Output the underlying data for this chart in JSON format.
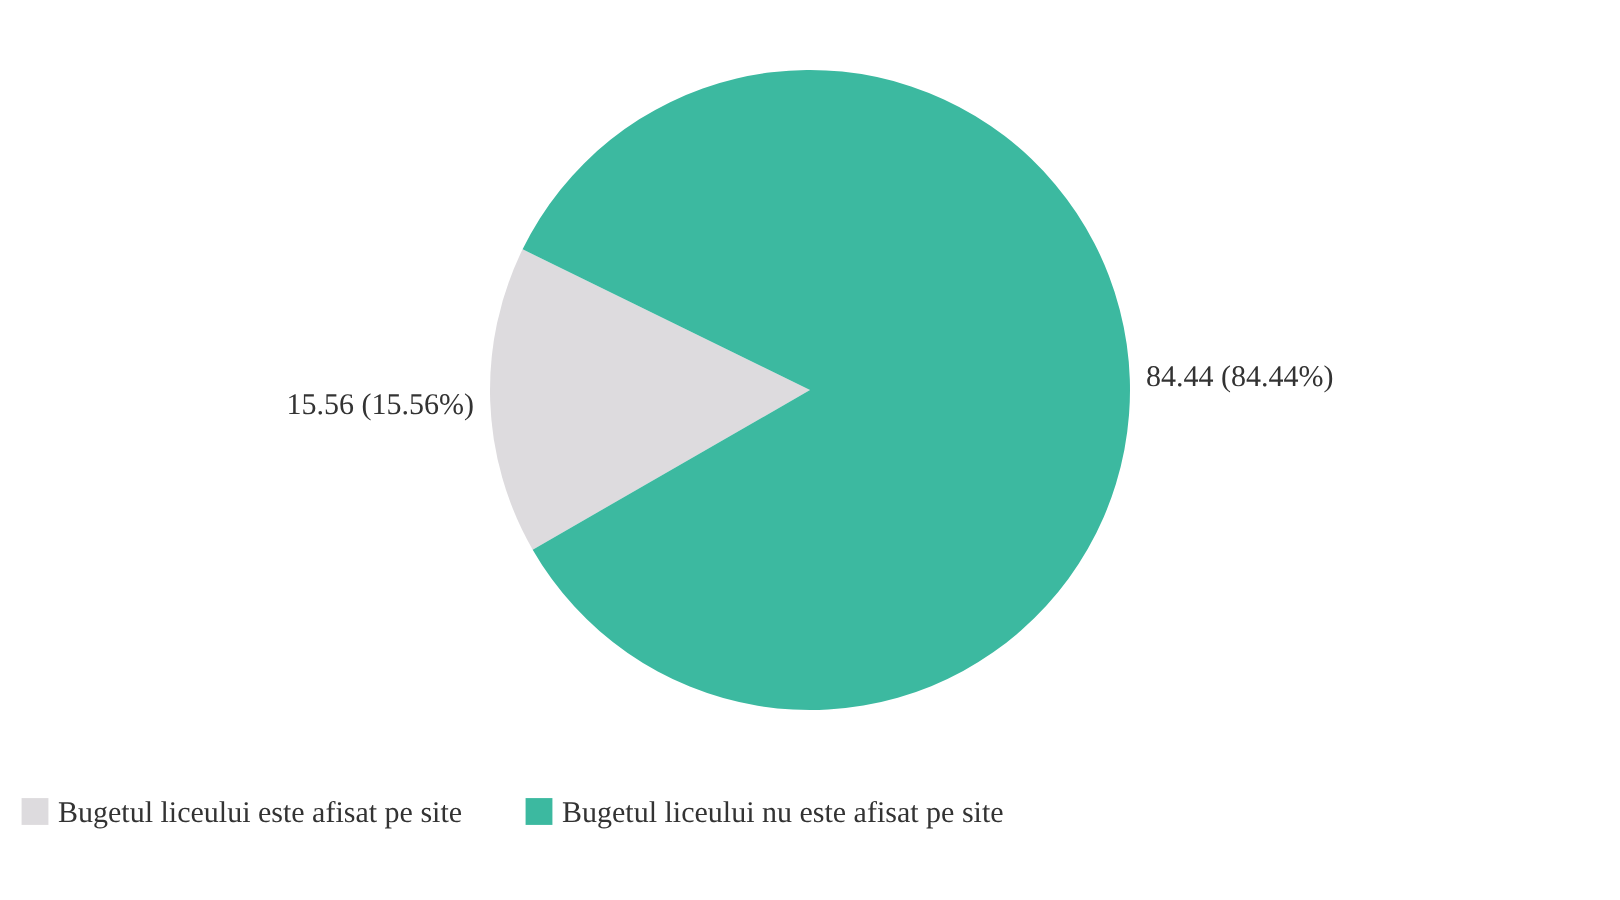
{
  "chart_data": {
    "type": "pie",
    "categories": [
      "Bugetul liceului este afisat pe site",
      "Bugetul liceului nu este afisat pe site"
    ],
    "values": [
      15.56,
      84.44
    ],
    "colors": [
      "#dddbde",
      "#3cb9a0"
    ],
    "value_labels": [
      "15.56 (15.56%)",
      "84.44 (84.44%)"
    ],
    "legend": "bottom"
  }
}
